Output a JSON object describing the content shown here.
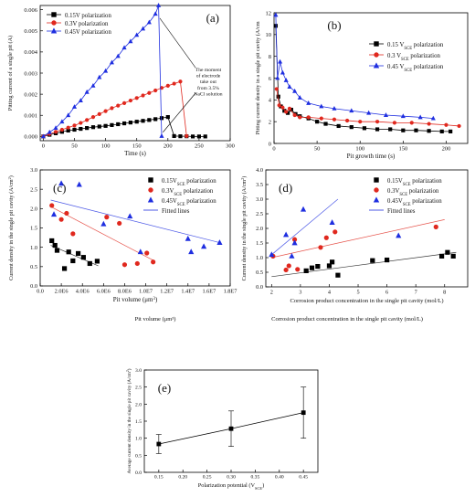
{
  "chart_data": [
    {
      "panel": "(a)",
      "type": "line",
      "xlabel": "Time (s)",
      "ylabel": "Pitting current of a single pit (A)",
      "xlim": [
        -5,
        300
      ],
      "ylim": [
        -0.0002,
        0.0062
      ],
      "xticks": [
        0,
        50,
        100,
        150,
        200,
        250,
        300
      ],
      "yticks": [
        0.0,
        0.001,
        0.002,
        0.003,
        0.004,
        0.005,
        0.006
      ],
      "ytick_labels": [
        "0.000",
        "0.001",
        "0.002",
        "0.003",
        "0.004",
        "0.005",
        "0.006"
      ],
      "legend_position": "top-left",
      "annotation": [
        "The moment",
        "of electrode",
        "take out",
        "from 3.5%",
        "NaCl solution"
      ],
      "series": [
        {
          "name": "0.15V polarization",
          "color": "#000000",
          "marker": "square",
          "x": [
            0,
            10,
            20,
            30,
            40,
            50,
            60,
            70,
            80,
            90,
            100,
            110,
            120,
            130,
            140,
            150,
            160,
            170,
            180,
            190,
            200,
            210,
            220,
            230,
            240,
            250,
            260
          ],
          "y": [
            0,
            8e-05,
            0.00015,
            0.00022,
            0.00028,
            0.00032,
            0.00036,
            0.0004,
            0.00044,
            0.00047,
            0.0005,
            0.00054,
            0.00058,
            0.00062,
            0.00066,
            0.0007,
            0.00074,
            0.00078,
            0.00082,
            0.00087,
            0.00092,
            2e-05,
            1e-05,
            1e-05,
            0,
            0,
            0
          ]
        },
        {
          "name": "0.3V polarization",
          "color": "#e0281e",
          "marker": "circle",
          "x": [
            0,
            10,
            20,
            30,
            40,
            50,
            60,
            70,
            80,
            90,
            100,
            110,
            120,
            130,
            140,
            150,
            160,
            170,
            180,
            190,
            200,
            210,
            220,
            230
          ],
          "y": [
            0,
            0.00012,
            0.00022,
            0.00032,
            0.00042,
            0.00052,
            0.00064,
            0.00078,
            0.00092,
            0.00106,
            0.0012,
            0.00134,
            0.00146,
            0.00158,
            0.0017,
            0.00182,
            0.00194,
            0.00206,
            0.00218,
            0.0023,
            0.0024,
            0.0025,
            0.0026,
            2e-05
          ]
        },
        {
          "name": "0.45V polarization",
          "color": "#1f2fe0",
          "marker": "triangle",
          "x": [
            0,
            10,
            20,
            30,
            40,
            50,
            60,
            70,
            80,
            90,
            100,
            110,
            120,
            130,
            140,
            150,
            160,
            170,
            180,
            185,
            190
          ],
          "y": [
            0,
            0.0002,
            0.0004,
            0.0007,
            0.001,
            0.0014,
            0.0017,
            0.0021,
            0.0024,
            0.0028,
            0.0031,
            0.0035,
            0.0038,
            0.0042,
            0.0045,
            0.0048,
            0.0051,
            0.0054,
            0.0058,
            0.0062,
            2e-05
          ]
        }
      ]
    },
    {
      "panel": "(b)",
      "type": "line",
      "xlabel": "Pit growth time (s)",
      "ylabel": "Pitting current density in a single pit cavity (A/cm",
      "xlim": [
        0,
        225
      ],
      "ylim": [
        0,
        12
      ],
      "xticks": [
        0,
        50,
        100,
        150,
        200
      ],
      "yticks": [
        0,
        2,
        4,
        6,
        8,
        10,
        12
      ],
      "legend_position": "top-right",
      "series": [
        {
          "name_parts": [
            "0.15 V",
            "SCE",
            " polarization"
          ],
          "color": "#000000",
          "marker": "square",
          "x": [
            2,
            5,
            8,
            12,
            16,
            20,
            25,
            30,
            40,
            50,
            60,
            75,
            90,
            105,
            120,
            135,
            150,
            165,
            180,
            195,
            205
          ],
          "y": [
            10.8,
            4.3,
            3.4,
            3.0,
            2.8,
            3.1,
            2.7,
            2.5,
            2.3,
            2.0,
            1.8,
            1.6,
            1.5,
            1.4,
            1.3,
            1.3,
            1.2,
            1.2,
            1.15,
            1.1,
            1.1
          ]
        },
        {
          "name_parts": [
            "0.3 V",
            "SCE",
            " polarization"
          ],
          "color": "#e0281e",
          "marker": "circle",
          "x": [
            3,
            6,
            10,
            14,
            18,
            24,
            30,
            40,
            55,
            70,
            85,
            100,
            120,
            140,
            160,
            180,
            200,
            215
          ],
          "y": [
            5.0,
            3.5,
            3.3,
            2.9,
            3.2,
            2.6,
            2.4,
            2.4,
            2.3,
            2.2,
            2.1,
            2.0,
            2.0,
            1.9,
            1.9,
            1.8,
            1.7,
            1.6
          ]
        },
        {
          "name_parts": [
            "0.45 V",
            "SCE",
            " polarization"
          ],
          "color": "#1f2fe0",
          "marker": "triangle",
          "x": [
            2,
            4,
            7,
            10,
            14,
            18,
            24,
            30,
            40,
            55,
            70,
            90,
            110,
            130,
            150,
            170,
            185
          ],
          "y": [
            11.8,
            6.0,
            7.5,
            6.5,
            5.8,
            5.2,
            4.8,
            4.2,
            3.7,
            3.4,
            3.2,
            3.0,
            2.8,
            2.6,
            2.5,
            2.4,
            2.3
          ]
        }
      ]
    },
    {
      "panel": "(c)",
      "type": "scatter",
      "xlabel": "Pit volume (μm",
      "xlabel_sup": "3",
      "ylabel": "Current density in the single pit cavity (A/cm",
      "ylabel_sup": "2",
      "xlim": [
        0,
        18000000
      ],
      "ylim": [
        0,
        3
      ],
      "xticks": [
        0,
        2000000,
        4000000,
        6000000,
        8000000,
        10000000,
        12000000,
        14000000,
        16000000,
        18000000
      ],
      "xtick_labels": [
        "0.0",
        "2.0E6",
        "4.0E6",
        "6.0E6",
        "8.0E6",
        "1.0E7",
        "1.2E7",
        "1.4E7",
        "1.6E7",
        "1.8E7"
      ],
      "yticks": [
        0,
        0.5,
        1.0,
        1.5,
        2.0,
        2.5,
        3.0
      ],
      "ytick_labels": [
        "0.0",
        "0.5",
        "1.0",
        "1.5",
        "2.0",
        "2.5",
        "3.0"
      ],
      "legend_position": "top-right",
      "fit_label": "Fitted lines",
      "series": [
        {
          "name_parts": [
            "0.15V",
            "SCE",
            " polarization"
          ],
          "color": "#000000",
          "marker": "square",
          "x": [
            1100000,
            1400000,
            1600000,
            2300000,
            2700000,
            3100000,
            3600000,
            4100000,
            4700000,
            5400000
          ],
          "y": [
            1.17,
            1.05,
            0.92,
            0.45,
            0.88,
            0.65,
            0.84,
            0.74,
            0.58,
            0.64
          ],
          "fit": [
            [
              1000000,
              1.05
            ],
            [
              5500000,
              0.52
            ]
          ]
        },
        {
          "name_parts": [
            "0.3V",
            "SCE",
            " polarization"
          ],
          "color": "#e0281e",
          "marker": "circle",
          "x": [
            1100000,
            2000000,
            2500000,
            3100000,
            6300000,
            7500000,
            8000000,
            9200000,
            10100000,
            10700000
          ],
          "y": [
            2.08,
            1.72,
            1.88,
            1.35,
            1.78,
            1.62,
            0.55,
            0.58,
            0.85,
            0.62
          ],
          "fit": [
            [
              1000000,
              2.05
            ],
            [
              10800000,
              0.65
            ]
          ]
        },
        {
          "name_parts": [
            "0.45V",
            "SCE",
            " polarization"
          ],
          "color": "#1f2fe0",
          "marker": "triangle",
          "x": [
            1300000,
            2000000,
            3700000,
            6000000,
            8500000,
            9500000,
            14000000,
            14300000,
            15500000,
            17000000
          ],
          "y": [
            1.85,
            2.65,
            2.62,
            1.6,
            1.8,
            0.88,
            1.22,
            0.88,
            1.02,
            1.12
          ],
          "fit": [
            [
              1000000,
              2.22
            ],
            [
              17000000,
              1.12
            ]
          ]
        }
      ]
    },
    {
      "panel": "(d)",
      "type": "scatter",
      "xlabel": "Corrosion product concentration in the single pit cavity (mol/L)",
      "ylabel": "Current density in the single pit cavity (A/cm",
      "ylabel_sup": "2",
      "xlim": [
        1.8,
        8.8
      ],
      "ylim": [
        0,
        4
      ],
      "xticks": [
        2,
        3,
        4,
        5,
        6,
        7,
        8
      ],
      "yticks": [
        0,
        0.5,
        1.0,
        1.5,
        2.0,
        2.5,
        3.0,
        3.5,
        4.0
      ],
      "ytick_labels": [
        "0.0",
        "0.5",
        "1.0",
        "1.5",
        "2.0",
        "2.5",
        "3.0",
        "3.5",
        "4.0"
      ],
      "legend_position": "top-right",
      "fit_label": "Fitted lines",
      "series": [
        {
          "name_parts": [
            "0.15V",
            "SCE",
            " polarization"
          ],
          "color": "#000000",
          "marker": "square",
          "x": [
            3.2,
            3.4,
            3.6,
            4.0,
            4.1,
            4.3,
            5.5,
            6.0,
            7.9,
            8.1,
            8.3
          ],
          "y": [
            0.55,
            0.65,
            0.7,
            0.72,
            0.85,
            0.4,
            0.9,
            0.92,
            1.05,
            1.18,
            1.05
          ],
          "fit": [
            [
              2.0,
              0.35
            ],
            [
              8.4,
              1.18
            ]
          ]
        },
        {
          "name_parts": [
            "0.3V",
            "SCE",
            " polarization"
          ],
          "color": "#e0281e",
          "marker": "circle",
          "x": [
            2.05,
            2.5,
            2.6,
            2.8,
            2.9,
            3.7,
            3.9,
            4.2,
            7.7
          ],
          "y": [
            1.05,
            0.58,
            0.72,
            1.62,
            0.6,
            1.35,
            1.68,
            1.88,
            2.05
          ],
          "fit": [
            [
              2.0,
              1.0
            ],
            [
              8.0,
              2.3
            ]
          ]
        },
        {
          "name_parts": [
            "0.45V",
            "SCE",
            " polarization"
          ],
          "color": "#1f2fe0",
          "marker": "triangle",
          "x": [
            2.0,
            2.5,
            2.7,
            2.8,
            3.1,
            4.1,
            6.4
          ],
          "y": [
            1.1,
            1.78,
            1.05,
            1.5,
            2.65,
            2.2,
            1.75
          ],
          "fit": [
            [
              2.0,
              1.1
            ],
            [
              4.3,
              3.0
            ]
          ]
        }
      ]
    },
    {
      "panel": "(e)",
      "type": "line",
      "xlabel": "Polarization potential (V",
      "xlabel_sub": "SCE",
      "ylabel": "Average current density in the single pit cavity (A/cm",
      "ylabel_sup": "2",
      "xlim": [
        0.12,
        0.48
      ],
      "ylim": [
        0,
        3.0
      ],
      "xticks": [
        0.15,
        0.2,
        0.25,
        0.3,
        0.35,
        0.4,
        0.45
      ],
      "xtick_labels": [
        "0.15",
        "0.20",
        "0.25",
        "0.30",
        "0.35",
        "0.40",
        "0.45"
      ],
      "yticks": [
        0.0,
        0.5,
        1.0,
        1.5,
        2.0,
        2.5,
        3.0
      ],
      "ytick_labels": [
        "0.0",
        "0.5",
        "1.0",
        "1.5",
        "2.0",
        "2.5",
        "3.0"
      ],
      "series": [
        {
          "color": "#000000",
          "marker": "square",
          "x": [
            0.15,
            0.3,
            0.45
          ],
          "y": [
            0.83,
            1.28,
            1.75
          ],
          "err": [
            0.28,
            0.52,
            0.75
          ]
        }
      ]
    }
  ],
  "cut_captions": {
    "c": "Pit volume (μm³)",
    "d": "Corrosion product concentration in the single pit cavity (mol/L)"
  }
}
